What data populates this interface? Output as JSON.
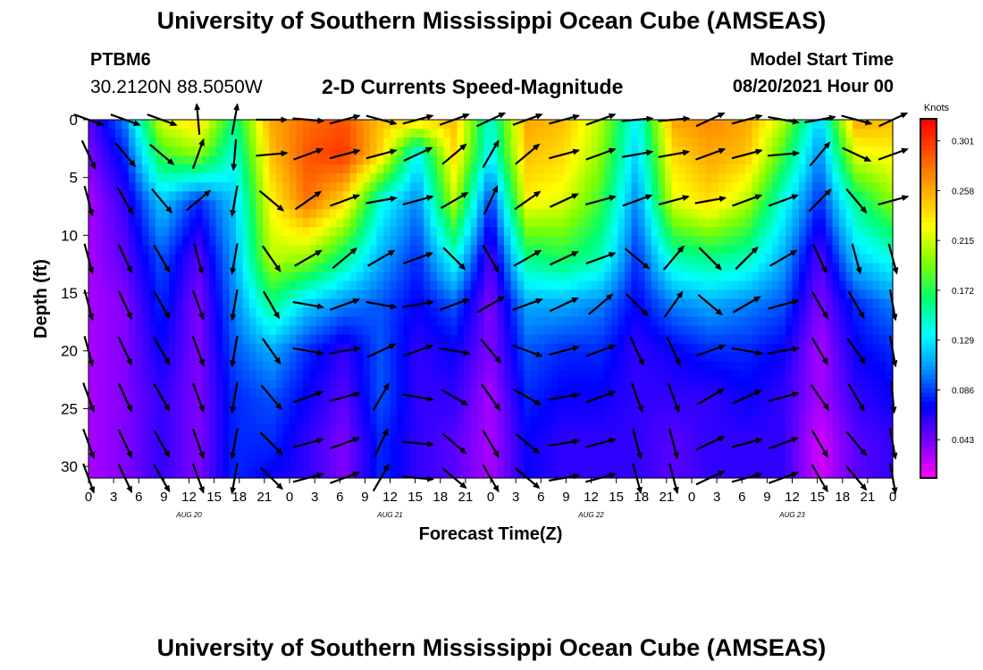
{
  "header": {
    "title": "University of Southern Mississippi Ocean Cube (AMSEAS)",
    "station_name": "PTBM6",
    "station_coords": "30.2120N  88.5050W",
    "plot_title": "2-D Currents Speed-Magnitude",
    "model_label": "Model Start Time",
    "model_start": "08/20/2021 Hour 00"
  },
  "footer": {
    "title": "University of Southern Mississippi Ocean Cube (AMSEAS)"
  },
  "chart_data": {
    "type": "heatmap",
    "title": "2-D Currents Speed-Magnitude",
    "xlabel": "Forecast Time(Z)",
    "ylabel": "Depth (ft)",
    "x_tick_labels": [
      "0",
      "3",
      "6",
      "9",
      "12",
      "15",
      "18",
      "21",
      "0",
      "3",
      "6",
      "9",
      "12",
      "15",
      "18",
      "21",
      "0",
      "3",
      "6",
      "9",
      "12",
      "15",
      "18",
      "21",
      "0",
      "3",
      "6",
      "9",
      "12",
      "15",
      "18",
      "21",
      "0"
    ],
    "x_hours_range": [
      0,
      96
    ],
    "day_labels": [
      {
        "label": "AUG 20",
        "hour": 12
      },
      {
        "label": "AUG 21",
        "hour": 36
      },
      {
        "label": "AUG 22",
        "hour": 60
      },
      {
        "label": "AUG 23",
        "hour": 84
      }
    ],
    "y_ticks": [
      0,
      5,
      10,
      15,
      20,
      25,
      30
    ],
    "ylim": [
      0,
      31
    ],
    "colorbar": {
      "unit": "Knots",
      "ticks": [
        "0.301",
        "0.258",
        "0.215",
        "0.172",
        "0.129",
        "0.086",
        "0.043"
      ],
      "tick_values": [
        0.301,
        0.258,
        0.215,
        0.172,
        0.129,
        0.086,
        0.043
      ],
      "range": [
        0.01,
        0.32
      ],
      "colors": [
        "#ff00ff",
        "#7d00ff",
        "#0000ff",
        "#0090ff",
        "#00ffff",
        "#00ff6e",
        "#7fff00",
        "#ffff00",
        "#ffaa00",
        "#ff5500",
        "#ff0000"
      ]
    },
    "depth_levels_ft": [
      0,
      3,
      7,
      12,
      16,
      20,
      24,
      28,
      31
    ],
    "speed_grid_knots": [
      [
        0.05,
        0.1,
        0.22,
        0.24,
        0.16,
        0.26,
        0.28,
        0.29,
        0.25,
        0.24,
        0.25,
        0.14,
        0.26,
        0.25,
        0.21,
        0.13,
        0.26,
        0.27,
        0.26,
        0.21,
        0.12,
        0.26,
        0.25
      ],
      [
        0.04,
        0.08,
        0.18,
        0.2,
        0.14,
        0.25,
        0.29,
        0.3,
        0.24,
        0.13,
        0.24,
        0.13,
        0.25,
        0.24,
        0.2,
        0.12,
        0.24,
        0.26,
        0.25,
        0.18,
        0.1,
        0.22,
        0.23
      ],
      [
        0.03,
        0.06,
        0.12,
        0.08,
        0.12,
        0.23,
        0.28,
        0.24,
        0.14,
        0.1,
        0.21,
        0.08,
        0.23,
        0.22,
        0.18,
        0.1,
        0.22,
        0.24,
        0.21,
        0.14,
        0.08,
        0.16,
        0.2
      ],
      [
        0.03,
        0.05,
        0.09,
        0.05,
        0.11,
        0.21,
        0.2,
        0.16,
        0.11,
        0.08,
        0.14,
        0.05,
        0.16,
        0.17,
        0.15,
        0.08,
        0.15,
        0.16,
        0.15,
        0.11,
        0.05,
        0.12,
        0.14
      ],
      [
        0.03,
        0.04,
        0.08,
        0.04,
        0.1,
        0.16,
        0.12,
        0.1,
        0.09,
        0.07,
        0.09,
        0.04,
        0.11,
        0.11,
        0.1,
        0.07,
        0.1,
        0.11,
        0.1,
        0.09,
        0.04,
        0.08,
        0.1
      ],
      [
        0.03,
        0.04,
        0.07,
        0.04,
        0.09,
        0.11,
        0.08,
        0.06,
        0.09,
        0.06,
        0.07,
        0.04,
        0.09,
        0.08,
        0.08,
        0.06,
        0.07,
        0.08,
        0.08,
        0.07,
        0.03,
        0.07,
        0.08
      ],
      [
        0.03,
        0.04,
        0.06,
        0.04,
        0.08,
        0.09,
        0.07,
        0.05,
        0.09,
        0.06,
        0.06,
        0.03,
        0.08,
        0.07,
        0.07,
        0.06,
        0.06,
        0.06,
        0.07,
        0.06,
        0.03,
        0.06,
        0.07
      ],
      [
        0.03,
        0.04,
        0.06,
        0.04,
        0.08,
        0.08,
        0.06,
        0.04,
        0.08,
        0.06,
        0.05,
        0.03,
        0.07,
        0.06,
        0.06,
        0.06,
        0.05,
        0.06,
        0.06,
        0.06,
        0.02,
        0.05,
        0.06
      ],
      [
        0.03,
        0.04,
        0.06,
        0.04,
        0.08,
        0.07,
        0.06,
        0.04,
        0.08,
        0.06,
        0.05,
        0.03,
        0.07,
        0.06,
        0.06,
        0.06,
        0.05,
        0.06,
        0.06,
        0.06,
        0.02,
        0.05,
        0.06
      ]
    ],
    "vector_grid_deg": [
      [
        -20,
        -20,
        -20,
        95,
        80,
        0,
        -5,
        15,
        -15,
        15,
        20,
        25,
        20,
        15,
        20,
        5,
        5,
        25,
        15,
        -10,
        10,
        -15,
        25
      ],
      [
        -65,
        -50,
        -40,
        70,
        -95,
        5,
        20,
        15,
        15,
        25,
        40,
        60,
        40,
        15,
        20,
        10,
        10,
        20,
        15,
        5,
        50,
        -25,
        20
      ],
      [
        -75,
        -60,
        -50,
        40,
        -100,
        -40,
        35,
        20,
        10,
        15,
        30,
        65,
        35,
        25,
        15,
        20,
        15,
        10,
        20,
        20,
        45,
        -50,
        15
      ],
      [
        -75,
        -65,
        -60,
        -75,
        -100,
        -55,
        30,
        40,
        30,
        20,
        -45,
        -60,
        30,
        25,
        20,
        -40,
        50,
        -45,
        45,
        30,
        -65,
        -75,
        -75
      ],
      [
        -75,
        -65,
        -60,
        -70,
        -100,
        -60,
        -10,
        20,
        -10,
        10,
        20,
        30,
        20,
        25,
        40,
        -45,
        55,
        -40,
        30,
        15,
        -60,
        -60,
        -80
      ],
      [
        -75,
        -65,
        -60,
        -70,
        -100,
        -55,
        -10,
        10,
        25,
        20,
        -10,
        -50,
        -20,
        15,
        20,
        -65,
        -65,
        20,
        -10,
        10,
        -60,
        -55,
        -80
      ],
      [
        -70,
        -65,
        -60,
        -70,
        -100,
        -50,
        20,
        15,
        60,
        -10,
        -30,
        -55,
        -30,
        10,
        20,
        -70,
        -70,
        30,
        25,
        15,
        -55,
        -60,
        -85
      ],
      [
        -70,
        -65,
        -60,
        -70,
        -100,
        -45,
        15,
        20,
        65,
        -5,
        -40,
        -60,
        -40,
        10,
        15,
        -75,
        -75,
        25,
        15,
        20,
        -60,
        -50,
        -80
      ],
      [
        -70,
        -65,
        -60,
        -70,
        -100,
        -45,
        15,
        20,
        60,
        -5,
        -40,
        -60,
        -40,
        10,
        15,
        -75,
        -75,
        25,
        15,
        20,
        -60,
        -50,
        -80
      ]
    ]
  }
}
